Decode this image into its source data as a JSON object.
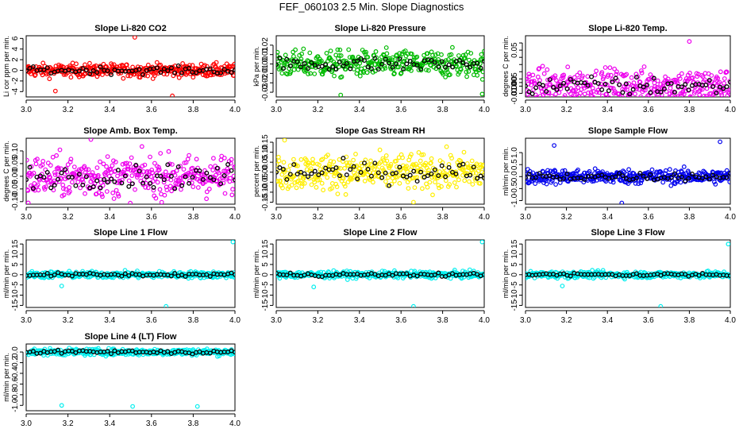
{
  "title": "FEF_060103  2.5 Min. Slope Diagnostics",
  "chart_data": [
    {
      "type": "scatter",
      "title": "Slope Li-820 CO2",
      "ylabel": "Li cor ppm per min.",
      "xlim": [
        3.0,
        4.0
      ],
      "ylim": [
        -5,
        6.5
      ],
      "xticks": [
        3.0,
        3.2,
        3.4,
        3.6,
        3.8,
        4.0
      ],
      "yticks": [
        -4,
        -2,
        0,
        2,
        4,
        6
      ],
      "ytick_labels": [
        "-4",
        "-2",
        "0",
        "2",
        "4",
        "6"
      ],
      "grid": false,
      "series": [
        {
          "color": "#ff0000",
          "role": "main"
        },
        {
          "color": "#000000",
          "role": "overlay"
        }
      ]
    },
    {
      "type": "scatter",
      "title": "Slope Li-820 Pressure",
      "ylabel": "kPa per min.",
      "xlim": [
        3.0,
        4.0
      ],
      "ylim": [
        -0.035,
        0.03
      ],
      "xticks": [
        3.0,
        3.2,
        3.4,
        3.6,
        3.8,
        4.0
      ],
      "yticks": [
        -0.03,
        -0.02,
        -0.01,
        0.0,
        0.01,
        0.02
      ],
      "ytick_labels": [
        "-0.03",
        "-0.02",
        "-0.01",
        "0.00",
        "0.01",
        "0.02"
      ],
      "grid": false,
      "series": [
        {
          "color": "#00bb00",
          "role": "main"
        },
        {
          "color": "#000000",
          "role": "overlay"
        }
      ]
    },
    {
      "type": "scatter",
      "title": "Slope Li-820 Temp.",
      "ylabel": "degrees C per min.",
      "xlim": [
        3.0,
        4.0
      ],
      "ylim": [
        -0.015,
        0.07
      ],
      "xticks": [
        3.0,
        3.2,
        3.4,
        3.6,
        3.8,
        4.0
      ],
      "yticks": [
        -0.01,
        0.0,
        0.005,
        0.01,
        0.02,
        0.03,
        0.04,
        0.05,
        0.06
      ],
      "ytick_labels": [
        "-0.010",
        "0.000",
        "0.005",
        "",
        "",
        "",
        "",
        "0.05",
        ""
      ],
      "grid": false,
      "series": [
        {
          "color": "#ee00ee",
          "role": "main"
        },
        {
          "color": "#000000",
          "role": "overlay"
        }
      ]
    },
    {
      "type": "scatter",
      "title": "Slope Amb. Box Temp.",
      "ylabel": "degrees C per min.",
      "xlim": [
        3.0,
        4.0
      ],
      "ylim": [
        -0.11,
        0.15
      ],
      "xticks": [
        3.0,
        3.2,
        3.4,
        3.6,
        3.8,
        4.0
      ],
      "yticks": [
        -0.1,
        -0.05,
        0.0,
        0.05,
        0.1
      ],
      "ytick_labels": [
        "-0.10",
        "-0.05",
        "0.00",
        "0.05",
        "0.10"
      ],
      "grid": false,
      "series": [
        {
          "color": "#ee00ee",
          "role": "main"
        },
        {
          "color": "#000000",
          "role": "overlay"
        }
      ]
    },
    {
      "type": "scatter",
      "title": "Slope Gas Stream RH",
      "ylabel": "percent per min.",
      "xlim": [
        3.0,
        4.0
      ],
      "ylim": [
        -0.16,
        0.17
      ],
      "xticks": [
        3.0,
        3.2,
        3.4,
        3.6,
        3.8,
        4.0
      ],
      "yticks": [
        -0.15,
        -0.1,
        -0.05,
        0.0,
        0.05,
        0.1,
        0.15
      ],
      "ytick_labels": [
        "-0.15",
        "-0.10",
        "-0.05",
        "0.00",
        "0.05",
        "0.10",
        "0.15"
      ],
      "grid": false,
      "series": [
        {
          "color": "#ffee00",
          "role": "main"
        },
        {
          "color": "#000000",
          "role": "overlay"
        }
      ]
    },
    {
      "type": "scatter",
      "title": "Slope Sample Flow",
      "ylabel": "ml/min per min.",
      "xlim": [
        3.0,
        4.0
      ],
      "ylim": [
        -1.15,
        1.6
      ],
      "xticks": [
        3.0,
        3.2,
        3.4,
        3.6,
        3.8,
        4.0
      ],
      "yticks": [
        -1.0,
        -0.5,
        0.0,
        0.5,
        1.0
      ],
      "ytick_labels": [
        "-1.0",
        "-0.5",
        "0.0",
        "0.5",
        "1.0"
      ],
      "grid": false,
      "series": [
        {
          "color": "#0000ee",
          "role": "main"
        },
        {
          "color": "#000000",
          "role": "overlay"
        }
      ]
    },
    {
      "type": "scatter",
      "title": "Slope Line 1 Flow",
      "ylabel": "ml/min per min.",
      "xlim": [
        3.0,
        4.0
      ],
      "ylim": [
        -16,
        17
      ],
      "xticks": [
        3.0,
        3.2,
        3.4,
        3.6,
        3.8,
        4.0
      ],
      "yticks": [
        -15,
        -10,
        -5,
        0,
        5,
        10,
        15
      ],
      "ytick_labels": [
        "-15",
        "-10",
        "-5",
        "0",
        "5",
        "10",
        "15"
      ],
      "grid": false,
      "series": [
        {
          "color": "#00eeee",
          "role": "main"
        },
        {
          "color": "#000000",
          "role": "overlay"
        }
      ]
    },
    {
      "type": "scatter",
      "title": "Slope Line 2 Flow",
      "ylabel": "ml/min per min.",
      "xlim": [
        3.0,
        4.0
      ],
      "ylim": [
        -16,
        17
      ],
      "xticks": [
        3.0,
        3.2,
        3.4,
        3.6,
        3.8,
        4.0
      ],
      "yticks": [
        -15,
        -10,
        -5,
        0,
        5,
        10,
        15
      ],
      "ytick_labels": [
        "-15",
        "-10",
        "-5",
        "0",
        "5",
        "10",
        "15"
      ],
      "grid": false,
      "series": [
        {
          "color": "#00eeee",
          "role": "main"
        },
        {
          "color": "#000000",
          "role": "overlay"
        }
      ]
    },
    {
      "type": "scatter",
      "title": "Slope Line 3 Flow",
      "ylabel": "ml/min per min.",
      "xlim": [
        3.0,
        4.0
      ],
      "ylim": [
        -16,
        17
      ],
      "xticks": [
        3.0,
        3.2,
        3.4,
        3.6,
        3.8,
        4.0
      ],
      "yticks": [
        -15,
        -10,
        -5,
        0,
        5,
        10,
        15
      ],
      "ytick_labels": [
        "-15",
        "-10",
        "-5",
        "0",
        "5",
        "10",
        "15"
      ],
      "grid": false,
      "series": [
        {
          "color": "#00eeee",
          "role": "main"
        },
        {
          "color": "#000000",
          "role": "overlay"
        }
      ]
    },
    {
      "type": "scatter",
      "title": "Slope Line 4 (LT) Flow",
      "ylabel": "ml/min per min.",
      "xlim": [
        3.0,
        4.0
      ],
      "ylim": [
        -1.1,
        0.15
      ],
      "xticks": [
        3.0,
        3.2,
        3.4,
        3.6,
        3.8,
        4.0
      ],
      "yticks": [
        -1.0,
        -0.8,
        -0.6,
        -0.4,
        -0.2,
        0.0
      ],
      "ytick_labels": [
        "-1.0",
        "-0.8",
        "-0.6",
        "-0.4",
        "-0.2",
        "0.0"
      ],
      "grid": false,
      "series": [
        {
          "color": "#00eeee",
          "role": "main"
        },
        {
          "color": "#000000",
          "role": "overlay"
        }
      ]
    }
  ]
}
